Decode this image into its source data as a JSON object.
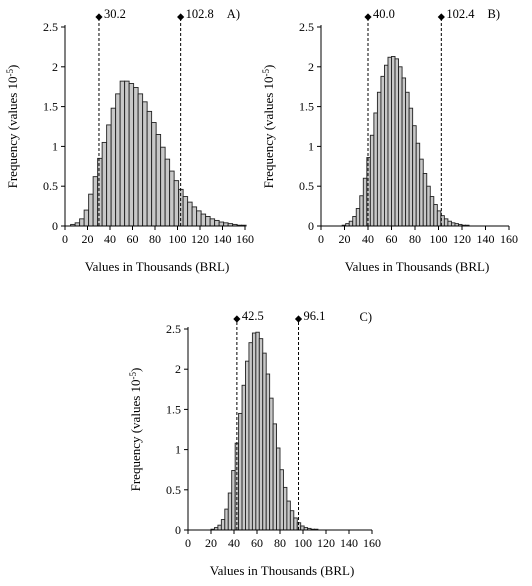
{
  "chart_data": [
    {
      "type": "bar",
      "panel_label": "A)",
      "xlabel": "Values in Thousands (BRL)",
      "ylabel": "Frequency (values 10",
      "ylabel_sup": "-5",
      "ylabel_end": ")",
      "xlim": [
        0,
        160
      ],
      "ylim": [
        0,
        2.5
      ],
      "x_ticks": [
        0,
        20,
        40,
        60,
        80,
        100,
        120,
        140,
        160
      ],
      "y_ticks": [
        0,
        0.5,
        1,
        1.5,
        2,
        2.5
      ],
      "y_tick_labels": [
        "0",
        "0.5",
        "1",
        "1.5",
        "2",
        "2.5"
      ],
      "bin_start": 5,
      "bin_width": 4,
      "values": [
        0.02,
        0.04,
        0.09,
        0.2,
        0.4,
        0.62,
        0.85,
        1.05,
        1.27,
        1.48,
        1.66,
        1.82,
        1.82,
        1.79,
        1.74,
        1.66,
        1.56,
        1.44,
        1.3,
        1.15,
        0.99,
        0.84,
        0.69,
        0.57,
        0.46,
        0.37,
        0.3,
        0.24,
        0.19,
        0.15,
        0.12,
        0.09,
        0.07,
        0.05,
        0.04,
        0.03,
        0.02,
        0.01,
        0.01
      ],
      "markers": [
        {
          "x": 30.2,
          "label": "30.2"
        },
        {
          "x": 102.8,
          "label": "102.8"
        }
      ]
    },
    {
      "type": "bar",
      "panel_label": "B)",
      "xlabel": "Values in Thousands (BRL)",
      "ylabel": "Frequency (values 10",
      "ylabel_sup": "-5",
      "ylabel_end": ")",
      "xlim": [
        0,
        160
      ],
      "ylim": [
        0,
        2.5
      ],
      "x_ticks": [
        0,
        20,
        40,
        60,
        80,
        100,
        120,
        140,
        160
      ],
      "y_ticks": [
        0,
        0.5,
        1,
        1.5,
        2,
        2.5
      ],
      "y_tick_labels": [
        "0",
        "0.5",
        "1",
        "1.5",
        "2",
        "2.5"
      ],
      "bin_start": 18,
      "bin_width": 3,
      "values": [
        0.01,
        0.03,
        0.06,
        0.12,
        0.22,
        0.38,
        0.6,
        0.86,
        1.14,
        1.42,
        1.68,
        1.88,
        2.02,
        2.12,
        2.13,
        2.1,
        2.0,
        1.86,
        1.68,
        1.48,
        1.26,
        1.04,
        0.84,
        0.66,
        0.5,
        0.37,
        0.27,
        0.19,
        0.13,
        0.09,
        0.06,
        0.04,
        0.03,
        0.02,
        0.01,
        0.01
      ],
      "markers": [
        {
          "x": 40.0,
          "label": "40.0"
        },
        {
          "x": 102.4,
          "label": "102.4"
        }
      ]
    },
    {
      "type": "bar",
      "panel_label": "C)",
      "xlabel": "Values in Thousands (BRL)",
      "ylabel": "Frequency (values 10",
      "ylabel_sup": "-5",
      "ylabel_end": ")",
      "xlim": [
        0,
        160
      ],
      "ylim": [
        0,
        2.5
      ],
      "x_ticks": [
        0,
        20,
        40,
        60,
        80,
        100,
        120,
        140,
        160
      ],
      "y_ticks": [
        0,
        0.5,
        1,
        1.5,
        2,
        2.5
      ],
      "y_tick_labels": [
        "0",
        "0.5",
        "1",
        "1.5",
        "2",
        "2.5"
      ],
      "bin_start": 20,
      "bin_width": 3,
      "values": [
        0.01,
        0.03,
        0.06,
        0.13,
        0.26,
        0.46,
        0.74,
        1.08,
        1.45,
        1.8,
        2.1,
        2.33,
        2.45,
        2.46,
        2.38,
        2.2,
        1.94,
        1.64,
        1.32,
        1.02,
        0.75,
        0.53,
        0.36,
        0.24,
        0.15,
        0.09,
        0.05,
        0.03,
        0.02,
        0.01,
        0.01
      ],
      "markers": [
        {
          "x": 42.5,
          "label": "42.5"
        },
        {
          "x": 96.1,
          "label": "96.1"
        }
      ]
    }
  ]
}
